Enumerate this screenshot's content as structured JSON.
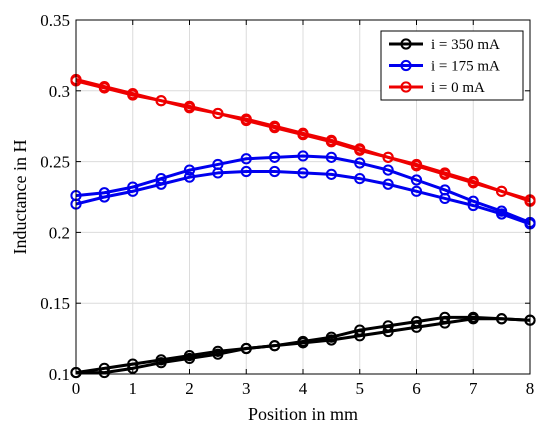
{
  "chart_data": {
    "type": "line",
    "title": "",
    "xlabel": "Position in mm",
    "ylabel": "Inductance in H",
    "xlim": [
      0,
      8
    ],
    "ylim": [
      0.1,
      0.35
    ],
    "xticks": [
      0,
      1,
      2,
      3,
      4,
      5,
      6,
      7,
      8
    ],
    "xtick_labels": [
      "0",
      "1",
      "2",
      "3",
      "4",
      "5",
      "6",
      "7",
      "8"
    ],
    "yticks": [
      0.1,
      0.15,
      0.2,
      0.25,
      0.3,
      0.35
    ],
    "ytick_labels": [
      "0.1",
      "0.15",
      "0.2",
      "0.25",
      "0.3",
      "0.35"
    ],
    "grid": true,
    "legend_position": "top-right",
    "x": [
      0,
      0.5,
      1,
      1.5,
      2,
      2.5,
      3,
      3.5,
      4,
      4.5,
      5,
      5.5,
      6,
      6.5,
      7,
      7.5,
      8
    ],
    "series": [
      {
        "name": "i = 350 mA",
        "color": "#000000",
        "lines": [
          [
            0.101,
            0.104,
            0.107,
            0.11,
            0.113,
            0.116,
            0.118,
            0.12,
            0.123,
            0.126,
            0.131,
            0.134,
            0.137,
            0.14,
            0.14,
            0.139,
            0.138
          ],
          [
            0.101,
            0.101,
            0.104,
            0.108,
            0.111,
            0.114,
            0.118,
            0.12,
            0.122,
            0.124,
            0.127,
            0.13,
            0.133,
            0.136,
            0.139,
            0.139,
            0.138
          ]
        ]
      },
      {
        "name": "i = 175 mA",
        "color": "#0000ee",
        "lines": [
          [
            0.226,
            0.228,
            0.232,
            0.238,
            0.244,
            0.248,
            0.252,
            0.253,
            0.254,
            0.253,
            0.249,
            0.244,
            0.237,
            0.23,
            0.222,
            0.215,
            0.207
          ],
          [
            0.22,
            0.225,
            0.229,
            0.234,
            0.239,
            0.242,
            0.243,
            0.243,
            0.242,
            0.241,
            0.238,
            0.234,
            0.229,
            0.224,
            0.219,
            0.213,
            0.206
          ]
        ]
      },
      {
        "name": "i = 0 mA",
        "color": "#ee0000",
        "lines": [
          [
            0.307,
            0.302,
            0.297,
            0.293,
            0.288,
            0.284,
            0.279,
            0.274,
            0.269,
            0.264,
            0.258,
            0.253,
            0.247,
            0.241,
            0.235,
            0.229,
            0.222
          ],
          [
            0.308,
            0.303,
            0.298,
            0.293,
            0.289,
            0.284,
            0.28,
            0.275,
            0.27,
            0.265,
            0.259,
            0.253,
            0.248,
            0.242,
            0.236,
            0.229,
            0.223
          ]
        ]
      }
    ]
  }
}
